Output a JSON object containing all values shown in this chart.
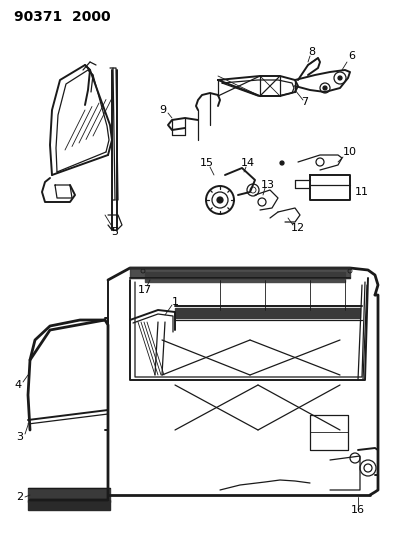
{
  "title": "90371  2000",
  "bg": "#ffffff",
  "lc": "#1a1a1a",
  "tc": "#000000",
  "figsize": [
    3.97,
    5.33
  ],
  "dpi": 100,
  "title_fs": 10,
  "label_fs": 8
}
